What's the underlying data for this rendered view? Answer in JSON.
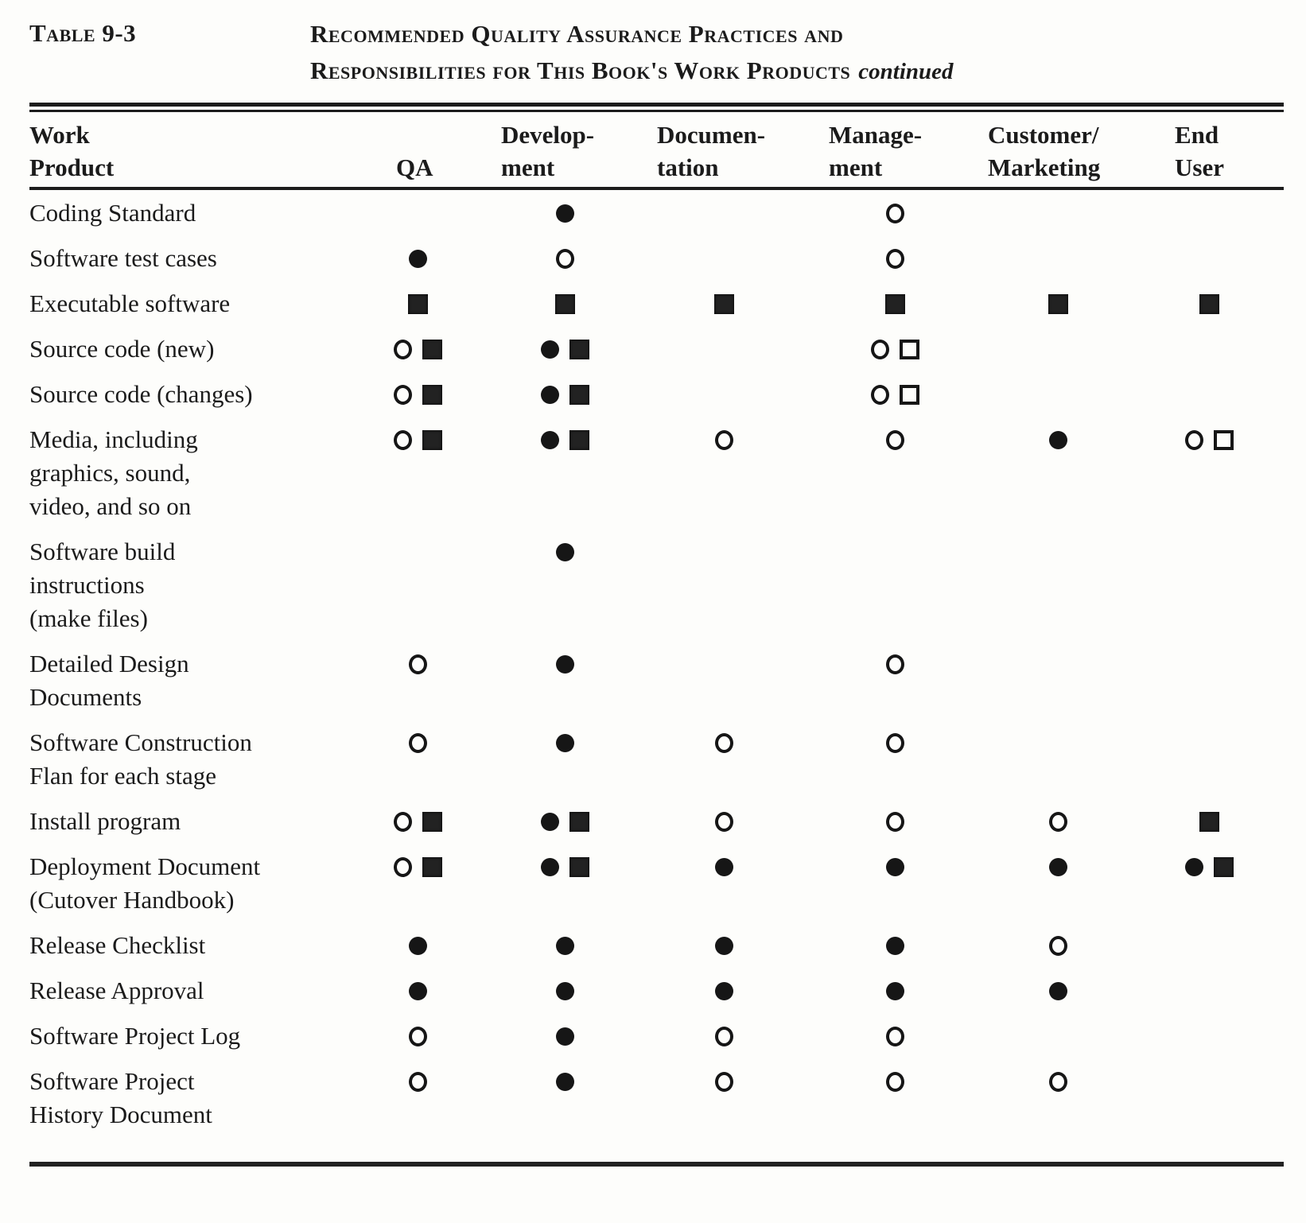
{
  "page": {
    "table_label": "Table 9-3",
    "title_line1": "Recommended Quality Assurance Practices and",
    "title_line2": "Responsibilities for This Book's Work Products",
    "continued_note": "continued"
  },
  "colors": {
    "ink": "#1b1b1b",
    "paper": "#fdfdfb"
  },
  "symbol_types": [
    "filled-circle",
    "open-circle",
    "filled-square",
    "open-square"
  ],
  "columns": [
    {
      "id": "work_product",
      "label": "Work\nProduct"
    },
    {
      "id": "qa",
      "label": "QA"
    },
    {
      "id": "development",
      "label": "Develop-\nment"
    },
    {
      "id": "documentation",
      "label": "Documen-\ntation"
    },
    {
      "id": "management",
      "label": "Manage-\nment"
    },
    {
      "id": "customer_marketing",
      "label": "Customer/\nMarketing"
    },
    {
      "id": "end_user",
      "label": "End\nUser"
    }
  ],
  "rows": [
    {
      "product": "Coding Standard",
      "cells": [
        [],
        [
          "filled-circle"
        ],
        [],
        [
          "open-circle"
        ],
        [],
        []
      ]
    },
    {
      "product": "Software test cases",
      "cells": [
        [
          "filled-circle"
        ],
        [
          "open-circle"
        ],
        [],
        [
          "open-circle"
        ],
        [],
        []
      ]
    },
    {
      "product": "Executable software",
      "cells": [
        [
          "filled-square"
        ],
        [
          "filled-square"
        ],
        [
          "filled-square"
        ],
        [
          "filled-square"
        ],
        [
          "filled-square"
        ],
        [
          "filled-square"
        ]
      ]
    },
    {
      "product": "Source code (new)",
      "cells": [
        [
          "open-circle",
          "filled-square"
        ],
        [
          "filled-circle",
          "filled-square"
        ],
        [],
        [
          "open-circle",
          "open-square"
        ],
        [],
        []
      ]
    },
    {
      "product": "Source code (changes)",
      "cells": [
        [
          "open-circle",
          "filled-square"
        ],
        [
          "filled-circle",
          "filled-square"
        ],
        [],
        [
          "open-circle",
          "open-square"
        ],
        [],
        []
      ]
    },
    {
      "product": "Media, including\ngraphics, sound,\nvideo, and so on",
      "cells": [
        [
          "open-circle",
          "filled-square"
        ],
        [
          "filled-circle",
          "filled-square"
        ],
        [
          "open-circle"
        ],
        [
          "open-circle"
        ],
        [
          "filled-circle"
        ],
        [
          "open-circle",
          "open-square"
        ]
      ]
    },
    {
      "product": "Software  build\ninstructions\n(make files)",
      "cells": [
        [],
        [
          "filled-circle"
        ],
        [],
        [],
        [],
        []
      ]
    },
    {
      "product": "Detailed  Design\nDocuments",
      "cells": [
        [
          "open-circle"
        ],
        [
          "filled-circle"
        ],
        [],
        [
          "open-circle"
        ],
        [],
        []
      ]
    },
    {
      "product": "Software   Construction\nFlan for each stage",
      "cells": [
        [
          "open-circle"
        ],
        [
          "filled-circle"
        ],
        [
          "open-circle"
        ],
        [
          "open-circle"
        ],
        [],
        []
      ]
    },
    {
      "product": "Install program",
      "cells": [
        [
          "open-circle",
          "filled-square"
        ],
        [
          "filled-circle",
          "filled-square"
        ],
        [
          "open-circle"
        ],
        [
          "open-circle"
        ],
        [
          "open-circle"
        ],
        [
          "filled-square"
        ]
      ]
    },
    {
      "product": "Deployment Document\n(Cutover  Handbook)",
      "cells": [
        [
          "open-circle",
          "filled-square"
        ],
        [
          "filled-circle",
          "filled-square"
        ],
        [
          "filled-circle"
        ],
        [
          "filled-circle"
        ],
        [
          "filled-circle"
        ],
        [
          "filled-circle",
          "filled-square"
        ]
      ]
    },
    {
      "product": "Release  Checklist",
      "cells": [
        [
          "filled-circle"
        ],
        [
          "filled-circle"
        ],
        [
          "filled-circle"
        ],
        [
          "filled-circle"
        ],
        [
          "open-circle"
        ],
        []
      ]
    },
    {
      "product": "Release   Approval",
      "cells": [
        [
          "filled-circle"
        ],
        [
          "filled-circle"
        ],
        [
          "filled-circle"
        ],
        [
          "filled-circle"
        ],
        [
          "filled-circle"
        ],
        []
      ]
    },
    {
      "product": "Software  Project Log",
      "cells": [
        [
          "open-circle"
        ],
        [
          "filled-circle"
        ],
        [
          "open-circle"
        ],
        [
          "open-circle"
        ],
        [],
        []
      ]
    },
    {
      "product": "Software  Project\nHistory Document",
      "cells": [
        [
          "open-circle"
        ],
        [
          "filled-circle"
        ],
        [
          "open-circle"
        ],
        [
          "open-circle"
        ],
        [
          "open-circle"
        ],
        []
      ]
    }
  ]
}
